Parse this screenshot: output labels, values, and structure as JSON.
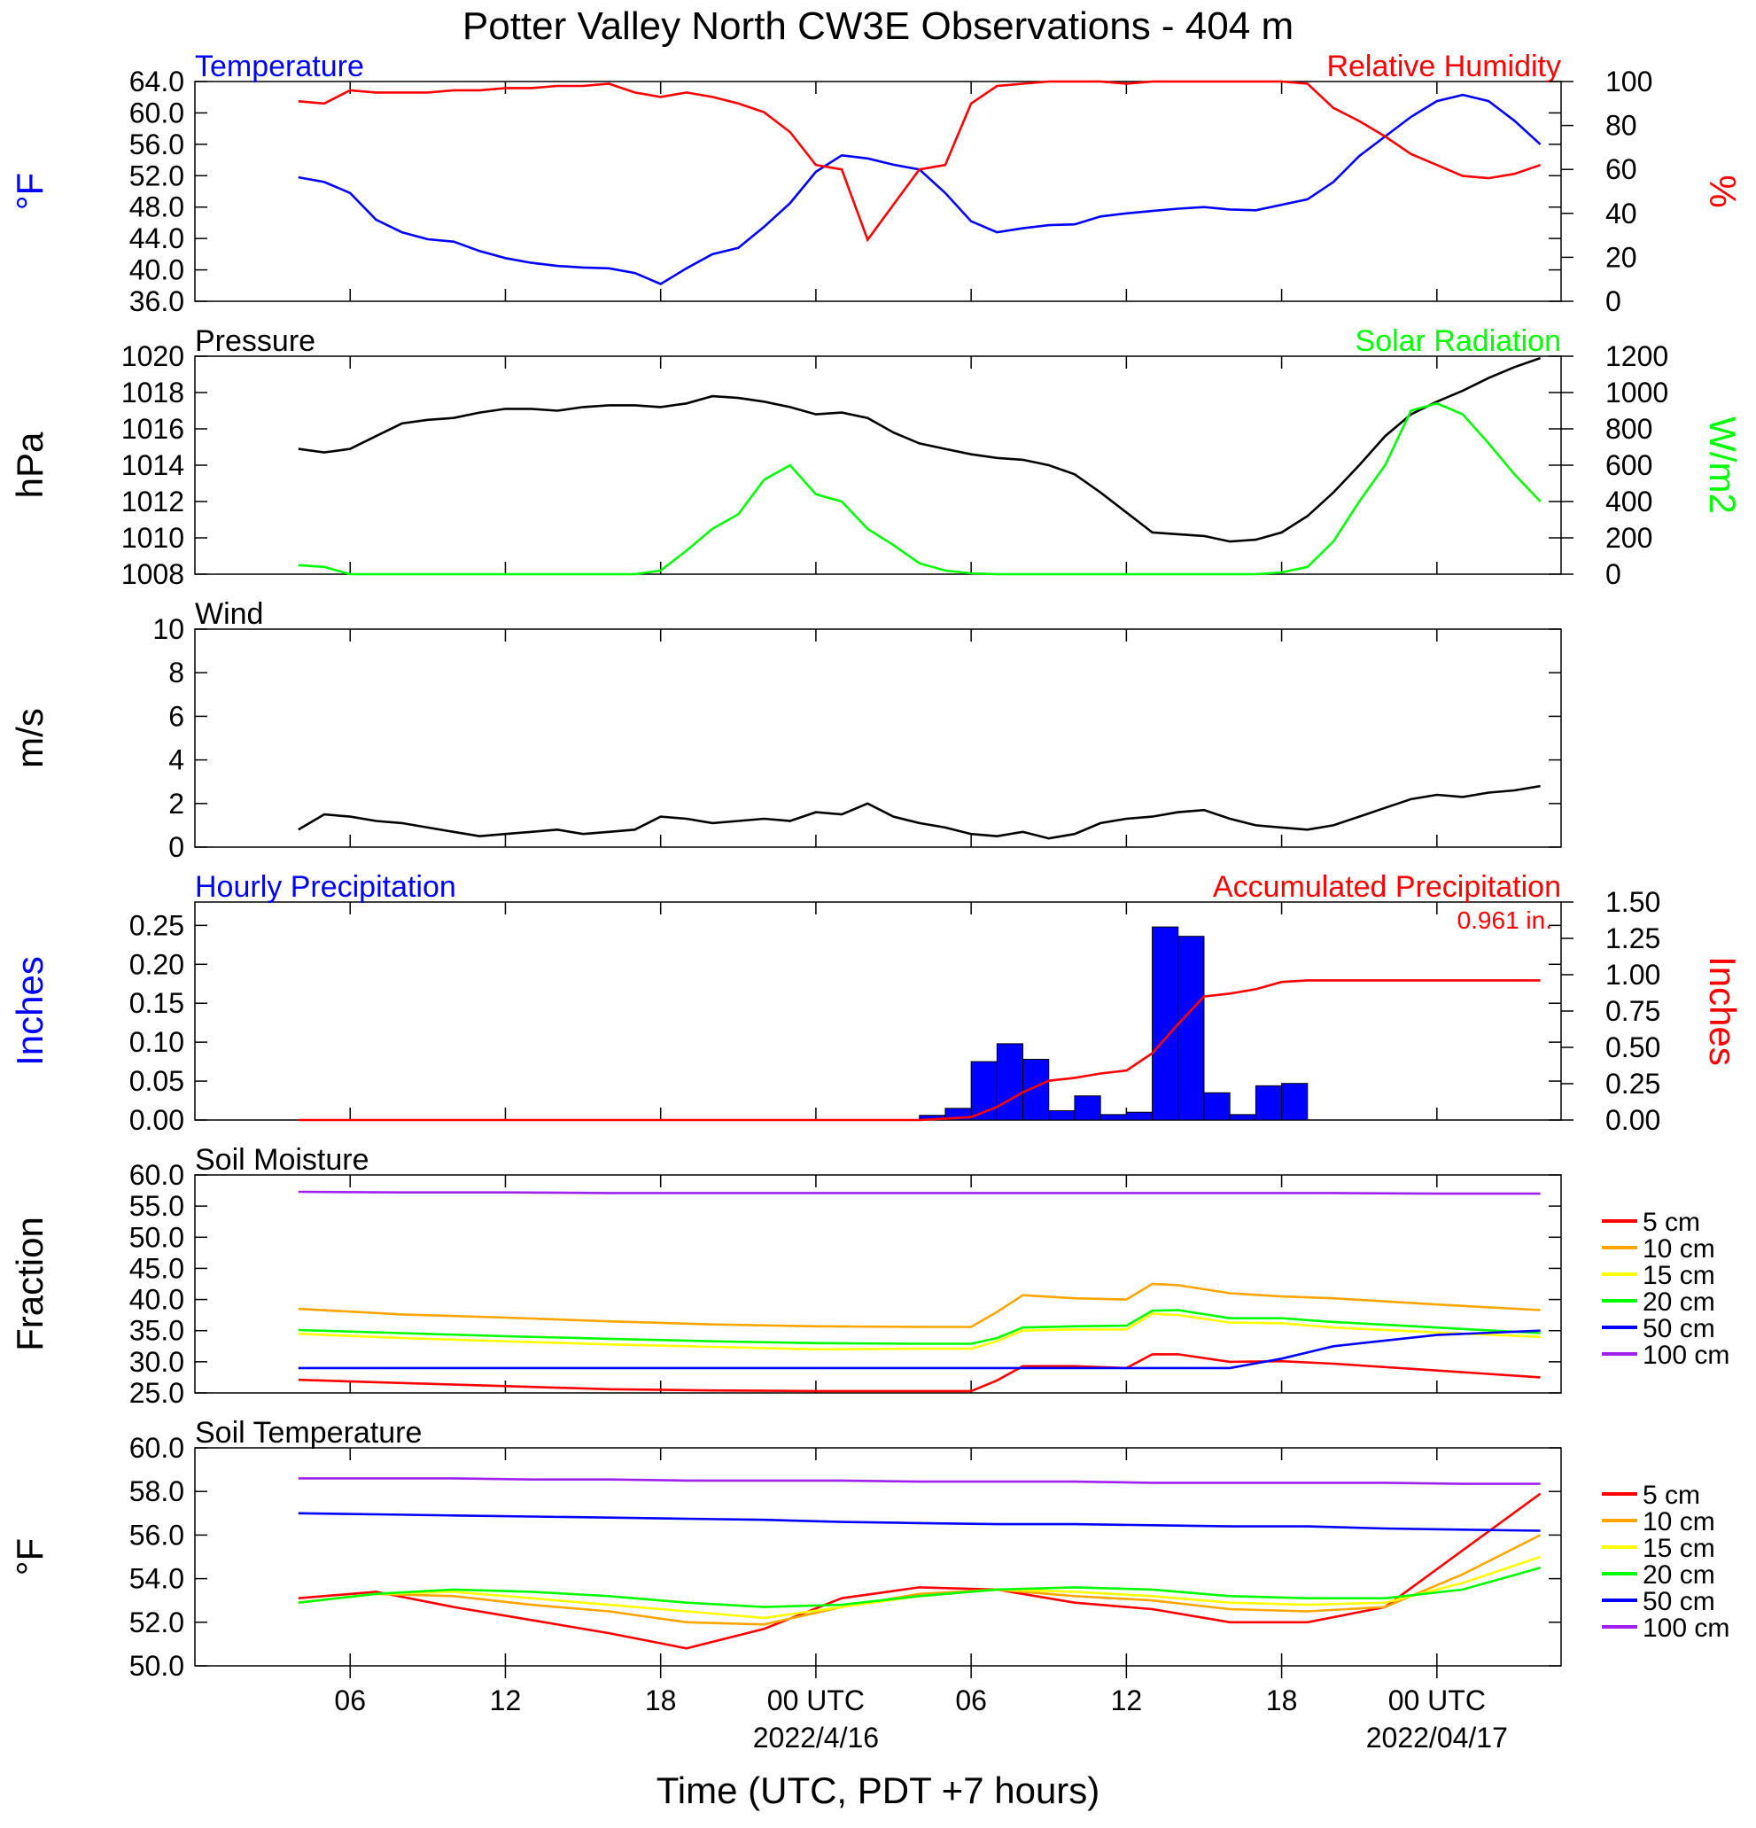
{
  "title": "Potter Valley North CW3E Observations - 404 m",
  "xlabel": "Time (UTC, PDT +7 hours)",
  "colors": {
    "blue": "#0000ff",
    "red": "#ff0000",
    "green": "#00ff00",
    "black": "#000000",
    "orange": "#ffa500",
    "yellow": "#ffff00",
    "purple": "#a020f0"
  },
  "x_ticks": [
    "06",
    "12",
    "18",
    "00 UTC",
    "06",
    "12",
    "18",
    "00 UTC"
  ],
  "x_date_labels": [
    "2022/4/16",
    "2022/04/17"
  ],
  "chart_data": [
    {
      "type": "line",
      "title_left": "Temperature",
      "title_right": "Relative Humidity",
      "ylabel_left": "°F",
      "ylabel_right": "%",
      "ylim_left": [
        36,
        64
      ],
      "ylim_right": [
        0,
        100
      ],
      "yticks_left": [
        "64.0",
        "60.0",
        "56.0",
        "52.0",
        "48.0",
        "44.0",
        "40.0",
        "36.0"
      ],
      "yticks_right": [
        "100",
        "80",
        "60",
        "40",
        "20",
        "0"
      ],
      "x_hours": [
        0,
        1,
        2,
        3,
        4,
        5,
        6,
        7,
        8,
        9,
        10,
        11,
        12,
        13,
        14,
        15,
        16,
        17,
        18,
        19,
        20,
        21,
        22,
        23,
        24,
        25,
        26,
        27,
        28,
        29,
        30,
        31,
        32,
        33,
        34,
        35,
        36,
        37,
        38,
        39,
        40,
        41,
        42,
        43,
        44,
        45,
        46,
        47,
        48
      ],
      "series": [
        {
          "name": "Temperature",
          "axis": "left",
          "color": "#0000ff",
          "values": [
            51.8,
            51.2,
            49.8,
            46.4,
            44.8,
            43.9,
            43.6,
            42.4,
            41.5,
            40.9,
            40.5,
            40.3,
            40.2,
            39.6,
            38.2,
            40.2,
            42.0,
            42.8,
            45.5,
            48.5,
            52.5,
            54.6,
            54.2,
            53.4,
            52.8,
            49.8,
            46.2,
            44.8,
            45.3,
            45.7,
            45.8,
            46.8,
            47.2,
            47.5,
            47.8,
            48.0,
            47.7,
            47.6,
            48.3,
            49.0,
            51.2,
            54.5,
            57.0,
            59.5,
            61.5,
            62.3,
            61.5,
            59.0,
            56.0
          ]
        },
        {
          "name": "Relative Humidity",
          "axis": "right",
          "color": "#ff0000",
          "values": [
            91,
            90,
            96,
            95,
            95,
            95,
            96,
            96,
            97,
            97,
            98,
            98,
            99,
            95,
            93,
            95,
            93,
            90,
            86,
            77,
            62,
            60,
            28,
            44,
            60,
            62,
            90,
            98,
            99,
            100,
            100,
            100,
            99,
            100,
            100,
            100,
            100,
            100,
            100,
            99,
            88,
            82,
            75,
            67,
            62,
            57,
            56,
            58,
            62
          ]
        }
      ]
    },
    {
      "type": "line",
      "title_left": "Pressure",
      "title_right": "Solar Radiation",
      "ylabel_left": "hPa",
      "ylabel_right": "W/m2",
      "ylim_left": [
        1008,
        1020
      ],
      "ylim_right": [
        0,
        1200
      ],
      "yticks_left": [
        "1020",
        "1018",
        "1016",
        "1014",
        "1012",
        "1010",
        "1008"
      ],
      "yticks_right": [
        "1200",
        "1000",
        "800",
        "600",
        "400",
        "200",
        "0"
      ],
      "x_hours": [
        0,
        1,
        2,
        3,
        4,
        5,
        6,
        7,
        8,
        9,
        10,
        11,
        12,
        13,
        14,
        15,
        16,
        17,
        18,
        19,
        20,
        21,
        22,
        23,
        24,
        25,
        26,
        27,
        28,
        29,
        30,
        31,
        32,
        33,
        34,
        35,
        36,
        37,
        38,
        39,
        40,
        41,
        42,
        43,
        44,
        45,
        46,
        47,
        48
      ],
      "series": [
        {
          "name": "Pressure",
          "axis": "left",
          "color": "#000000",
          "values": [
            1014.9,
            1014.7,
            1014.9,
            1015.6,
            1016.3,
            1016.5,
            1016.6,
            1016.9,
            1017.1,
            1017.1,
            1017.0,
            1017.2,
            1017.3,
            1017.3,
            1017.2,
            1017.4,
            1017.8,
            1017.7,
            1017.5,
            1017.2,
            1016.8,
            1016.9,
            1016.6,
            1015.8,
            1015.2,
            1014.9,
            1014.6,
            1014.4,
            1014.3,
            1014.0,
            1013.5,
            1012.5,
            1011.4,
            1010.3,
            1010.2,
            1010.1,
            1009.8,
            1009.9,
            1010.3,
            1011.2,
            1012.5,
            1014.0,
            1015.6,
            1016.8,
            1017.5,
            1018.1,
            1018.8,
            1019.4,
            1019.9
          ]
        },
        {
          "name": "Solar Radiation",
          "axis": "right",
          "color": "#00ff00",
          "values": [
            50,
            40,
            0,
            0,
            0,
            0,
            0,
            0,
            0,
            0,
            0,
            0,
            0,
            0,
            20,
            130,
            250,
            330,
            520,
            600,
            440,
            400,
            250,
            160,
            60,
            20,
            5,
            0,
            0,
            0,
            0,
            0,
            0,
            0,
            0,
            0,
            0,
            0,
            10,
            40,
            180,
            400,
            600,
            900,
            940,
            880,
            720,
            550,
            400
          ]
        }
      ]
    },
    {
      "type": "line",
      "title_left": "Wind",
      "ylabel_left": "m/s",
      "ylim_left": [
        0,
        10
      ],
      "yticks_left": [
        "10",
        "8",
        "6",
        "4",
        "2",
        "0"
      ],
      "x_hours": [
        0,
        1,
        2,
        3,
        4,
        5,
        6,
        7,
        8,
        9,
        10,
        11,
        12,
        13,
        14,
        15,
        16,
        17,
        18,
        19,
        20,
        21,
        22,
        23,
        24,
        25,
        26,
        27,
        28,
        29,
        30,
        31,
        32,
        33,
        34,
        35,
        36,
        37,
        38,
        39,
        40,
        41,
        42,
        43,
        44,
        45,
        46,
        47,
        48
      ],
      "series": [
        {
          "name": "Wind Speed",
          "axis": "left",
          "color": "#000000",
          "values": [
            0.8,
            1.5,
            1.4,
            1.2,
            1.1,
            0.9,
            0.7,
            0.5,
            0.6,
            0.7,
            0.8,
            0.6,
            0.7,
            0.8,
            1.4,
            1.3,
            1.1,
            1.2,
            1.3,
            1.2,
            1.6,
            1.5,
            2.0,
            1.4,
            1.1,
            0.9,
            0.6,
            0.5,
            0.7,
            0.4,
            0.6,
            1.1,
            1.3,
            1.4,
            1.6,
            1.7,
            1.3,
            1.0,
            0.9,
            0.8,
            1.0,
            1.4,
            1.8,
            2.2,
            2.4,
            2.3,
            2.5,
            2.6,
            2.8
          ]
        }
      ]
    },
    {
      "type": "bar",
      "title_left": "Hourly Precipitation",
      "title_right": "Accumulated Precipitation",
      "annotation": "0.961 in.",
      "ylabel_left": "Inches",
      "ylabel_right": "Inches",
      "ylim_left": [
        0,
        0.28
      ],
      "ylim_right": [
        0,
        1.5
      ],
      "yticks_left": [
        "0.25",
        "0.20",
        "0.15",
        "0.10",
        "0.05",
        "0.00"
      ],
      "yticks_right": [
        "1.50",
        "1.25",
        "1.00",
        "0.75",
        "0.50",
        "0.25",
        "0.00"
      ],
      "bar_start_hours": [
        24,
        25,
        26,
        27,
        28,
        29,
        30,
        31,
        32,
        33,
        34,
        35,
        36,
        37,
        38
      ],
      "series": [
        {
          "name": "Hourly Precipitation",
          "axis": "left",
          "color": "#0000ff",
          "values": [
            0.006,
            0.015,
            0.075,
            0.098,
            0.078,
            0.012,
            0.031,
            0.007,
            0.01,
            0.248,
            0.236,
            0.035,
            0.007,
            0.044,
            0.047
          ]
        },
        {
          "name": "Accumulated Precipitation",
          "axis": "right",
          "color": "#ff0000",
          "x_hours": [
            0,
            24,
            25,
            26,
            27,
            28,
            29,
            30,
            31,
            32,
            33,
            34,
            35,
            36,
            37,
            38,
            39,
            48
          ],
          "values": [
            0,
            0,
            0.01,
            0.02,
            0.09,
            0.19,
            0.27,
            0.29,
            0.32,
            0.34,
            0.46,
            0.66,
            0.85,
            0.87,
            0.9,
            0.95,
            0.961,
            0.961
          ]
        }
      ]
    },
    {
      "type": "line",
      "title_left": "Soil Moisture",
      "ylabel_left": "Fraction",
      "ylim_left": [
        25,
        60
      ],
      "yticks_left": [
        "60.0",
        "55.0",
        "50.0",
        "45.0",
        "40.0",
        "35.0",
        "30.0",
        "25.0"
      ],
      "x_hours": [
        0,
        4,
        8,
        12,
        16,
        20,
        24,
        26,
        27,
        28,
        30,
        32,
        33,
        34,
        36,
        38,
        40,
        44,
        48
      ],
      "series": [
        {
          "name": "5 cm",
          "color": "#ff0000",
          "values": [
            27.1,
            26.6,
            26.1,
            25.6,
            25.4,
            25.3,
            25.3,
            25.3,
            27.0,
            29.3,
            29.3,
            29.0,
            31.2,
            31.2,
            30.0,
            30.1,
            29.7,
            28.6,
            27.5
          ]
        },
        {
          "name": "10 cm",
          "color": "#ffa500",
          "values": [
            38.5,
            37.6,
            37.1,
            36.5,
            36.0,
            35.7,
            35.6,
            35.6,
            38.0,
            40.7,
            40.2,
            40.0,
            42.5,
            42.3,
            41.0,
            40.5,
            40.2,
            39.2,
            38.3
          ]
        },
        {
          "name": "15 cm",
          "color": "#ffff00",
          "values": [
            34.5,
            33.8,
            33.3,
            32.8,
            32.4,
            32.0,
            32.1,
            32.1,
            33.3,
            35.0,
            35.2,
            35.2,
            37.7,
            37.5,
            36.3,
            36.2,
            35.5,
            34.7,
            34.0
          ]
        },
        {
          "name": "20 cm",
          "color": "#00ff00",
          "values": [
            35.1,
            34.6,
            34.1,
            33.7,
            33.3,
            33.0,
            32.9,
            32.9,
            33.8,
            35.5,
            35.7,
            35.8,
            38.2,
            38.3,
            37.0,
            37.0,
            36.4,
            35.5,
            34.6
          ]
        },
        {
          "name": "50 cm",
          "color": "#0000ff",
          "values": [
            29.0,
            29.0,
            29.0,
            29.0,
            29.0,
            29.0,
            29.0,
            29.0,
            29.0,
            29.0,
            29.0,
            29.0,
            29.0,
            29.0,
            29.0,
            30.5,
            32.5,
            34.3,
            35.0
          ]
        },
        {
          "name": "100 cm",
          "color": "#a020f0",
          "values": [
            57.3,
            57.2,
            57.2,
            57.1,
            57.1,
            57.1,
            57.1,
            57.1,
            57.1,
            57.1,
            57.1,
            57.1,
            57.1,
            57.1,
            57.1,
            57.1,
            57.1,
            57.0,
            57.0
          ]
        }
      ]
    },
    {
      "type": "line",
      "title_left": "Soil Temperature",
      "ylabel_left": "°F",
      "ylim_left": [
        50,
        60
      ],
      "yticks_left": [
        "60.0",
        "58.0",
        "56.0",
        "54.0",
        "52.0",
        "50.0"
      ],
      "x_hours": [
        0,
        3,
        6,
        9,
        12,
        15,
        18,
        21,
        24,
        27,
        30,
        33,
        36,
        39,
        42,
        45,
        48
      ],
      "series": [
        {
          "name": "5 cm",
          "color": "#ff0000",
          "values": [
            53.1,
            53.4,
            52.7,
            52.1,
            51.5,
            50.8,
            51.7,
            53.1,
            53.6,
            53.5,
            52.9,
            52.6,
            52.0,
            52.0,
            52.7,
            55.3,
            57.9
          ]
        },
        {
          "name": "10 cm",
          "color": "#ffa500",
          "values": [
            52.9,
            53.3,
            53.2,
            52.8,
            52.5,
            52.0,
            51.9,
            52.7,
            53.3,
            53.5,
            53.2,
            53.0,
            52.6,
            52.5,
            52.7,
            54.2,
            56.0
          ]
        },
        {
          "name": "15 cm",
          "color": "#ffff00",
          "values": [
            52.9,
            53.3,
            53.4,
            53.1,
            52.8,
            52.5,
            52.2,
            52.7,
            53.2,
            53.5,
            53.4,
            53.2,
            52.9,
            52.8,
            52.9,
            53.8,
            55.0
          ]
        },
        {
          "name": "20 cm",
          "color": "#00ff00",
          "values": [
            52.9,
            53.3,
            53.5,
            53.4,
            53.2,
            52.9,
            52.7,
            52.8,
            53.2,
            53.5,
            53.6,
            53.5,
            53.2,
            53.1,
            53.1,
            53.5,
            54.5
          ]
        },
        {
          "name": "50 cm",
          "color": "#0000ff",
          "values": [
            57.0,
            56.95,
            56.9,
            56.85,
            56.8,
            56.75,
            56.7,
            56.6,
            56.55,
            56.5,
            56.5,
            56.45,
            56.4,
            56.4,
            56.3,
            56.25,
            56.2
          ]
        },
        {
          "name": "100 cm",
          "color": "#a020f0",
          "values": [
            58.6,
            58.6,
            58.6,
            58.55,
            58.55,
            58.5,
            58.5,
            58.5,
            58.45,
            58.45,
            58.45,
            58.4,
            58.4,
            58.4,
            58.4,
            58.35,
            58.35
          ]
        }
      ]
    }
  ]
}
